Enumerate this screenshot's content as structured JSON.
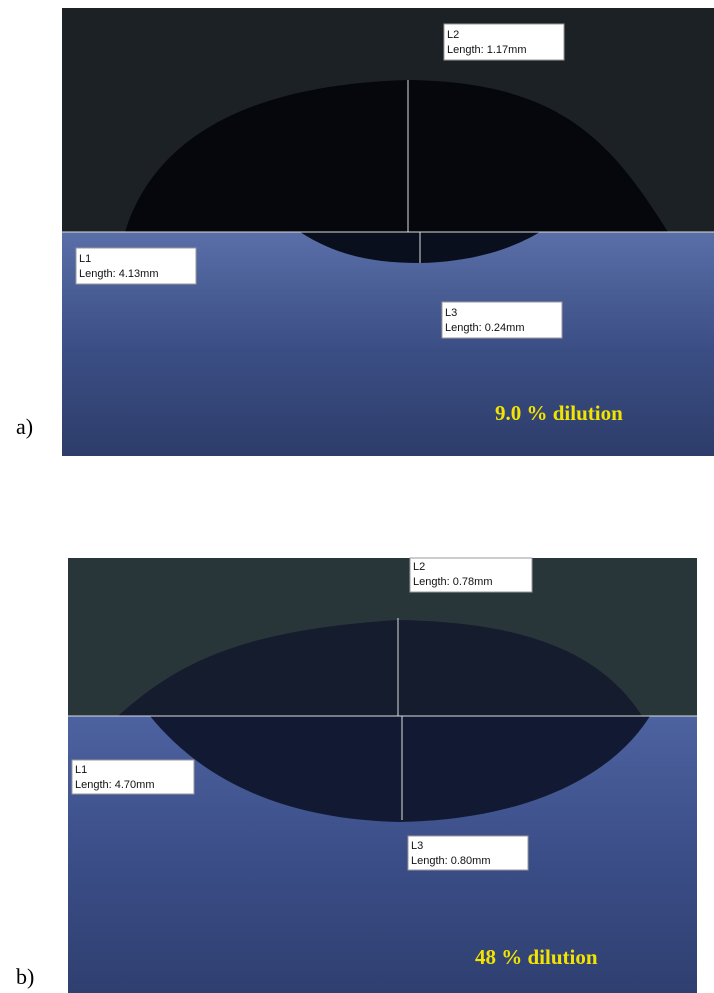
{
  "panels": [
    {
      "label": "a)",
      "dilution": "9.0 % dilution",
      "measurements": [
        {
          "name": "L2",
          "text": "Length: 1.17mm"
        },
        {
          "name": "L1",
          "text": "Length: 4.13mm"
        },
        {
          "name": "L3",
          "text": "Length: 0.24mm"
        }
      ]
    },
    {
      "label": "b)",
      "dilution": "48 % dilution",
      "measurements": [
        {
          "name": "L2",
          "text": "Length: 0.78mm"
        },
        {
          "name": "L1",
          "text": "Length: 4.70mm"
        },
        {
          "name": "L3",
          "text": "Length: 0.80mm"
        }
      ]
    }
  ]
}
